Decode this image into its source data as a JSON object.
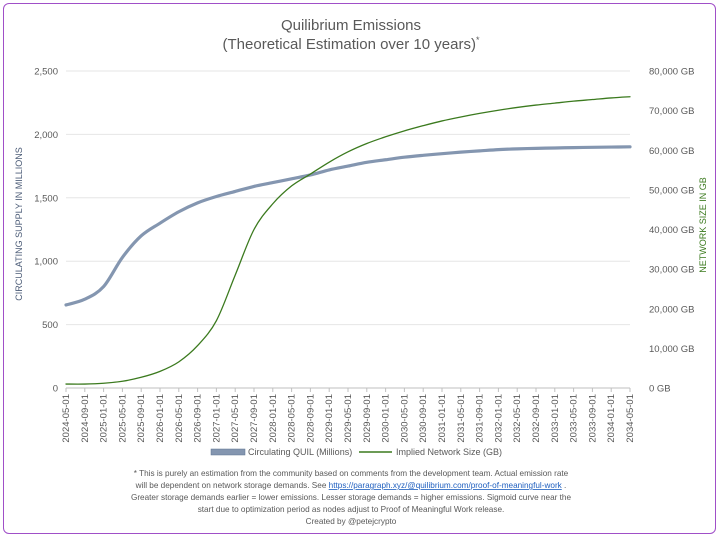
{
  "chart_data": {
    "type": "line",
    "title": "Quilibrium Emissions",
    "subtitle": "(Theoretical Estimation over 10 years)",
    "subtitle_mark": "*",
    "x": [
      "2024-05-01",
      "2024-09-01",
      "2025-01-01",
      "2025-05-01",
      "2025-09-01",
      "2026-01-01",
      "2026-05-01",
      "2026-09-01",
      "2027-01-01",
      "2027-05-01",
      "2027-09-01",
      "2028-01-01",
      "2028-05-01",
      "2028-09-01",
      "2029-01-01",
      "2029-05-01",
      "2029-09-01",
      "2030-01-01",
      "2030-05-01",
      "2030-09-01",
      "2031-01-01",
      "2031-05-01",
      "2031-09-01",
      "2032-01-01",
      "2032-05-01",
      "2032-09-01",
      "2033-01-01",
      "2033-05-01",
      "2033-09-01",
      "2034-01-01",
      "2034-05-01"
    ],
    "y_left": {
      "label": "CIRCULATING SUPPLY IN MILLIONS",
      "ylim": [
        0,
        2500
      ],
      "ticks": [
        "0",
        "500",
        "1,000",
        "1,500",
        "2,000",
        "2,500"
      ],
      "tick_values": [
        0,
        500,
        1000,
        1500,
        2000,
        2500
      ]
    },
    "y_right": {
      "label": "NETWORK SIZE IN GB",
      "ylim": [
        0,
        80000
      ],
      "ticks": [
        "0 GB",
        "10,000 GB",
        "20,000 GB",
        "30,000 GB",
        "40,000 GB",
        "50,000 GB",
        "60,000 GB",
        "70,000 GB",
        "80,000 GB"
      ],
      "tick_values": [
        0,
        10000,
        20000,
        30000,
        40000,
        50000,
        60000,
        70000,
        80000
      ]
    },
    "grid": "horizontal",
    "legend_position": "bottom",
    "series": [
      {
        "name": "Circulating QUIL (Millions)",
        "axis": "left",
        "color": "#8496b0",
        "values": [
          655,
          700,
          800,
          1030,
          1200,
          1300,
          1390,
          1460,
          1510,
          1550,
          1590,
          1620,
          1650,
          1680,
          1720,
          1750,
          1780,
          1800,
          1820,
          1835,
          1848,
          1860,
          1870,
          1880,
          1886,
          1890,
          1893,
          1896,
          1898,
          1900,
          1902
        ]
      },
      {
        "name": "Implied Network Size (GB)",
        "axis": "right",
        "color": "#3b7a1e",
        "values": [
          1000,
          1000,
          1200,
          1700,
          2700,
          4200,
          6600,
          10700,
          17000,
          28500,
          40000,
          46500,
          51000,
          54000,
          57000,
          59600,
          61700,
          63400,
          64900,
          66200,
          67400,
          68400,
          69300,
          70100,
          70800,
          71400,
          71900,
          72400,
          72800,
          73200,
          73500
        ]
      }
    ]
  },
  "footnote": {
    "line1": "* This is purely an estimation from the community based on comments from the development team. Actual emission rate",
    "line2_pre": "will be dependent on network storage demands. See ",
    "line2_link": "https://paragraph.xyz/@quilibrium.com/proof-of-meaningful-work",
    "line2_post": " .",
    "line3": "Greater storage demands earlier = lower emissions. Lesser storage demands = higher emissions. Sigmoid curve near the",
    "line4": "start due to optimization period as nodes adjust to Proof of Meaningful Work release.",
    "credit": "Created by @petejcrypto"
  }
}
